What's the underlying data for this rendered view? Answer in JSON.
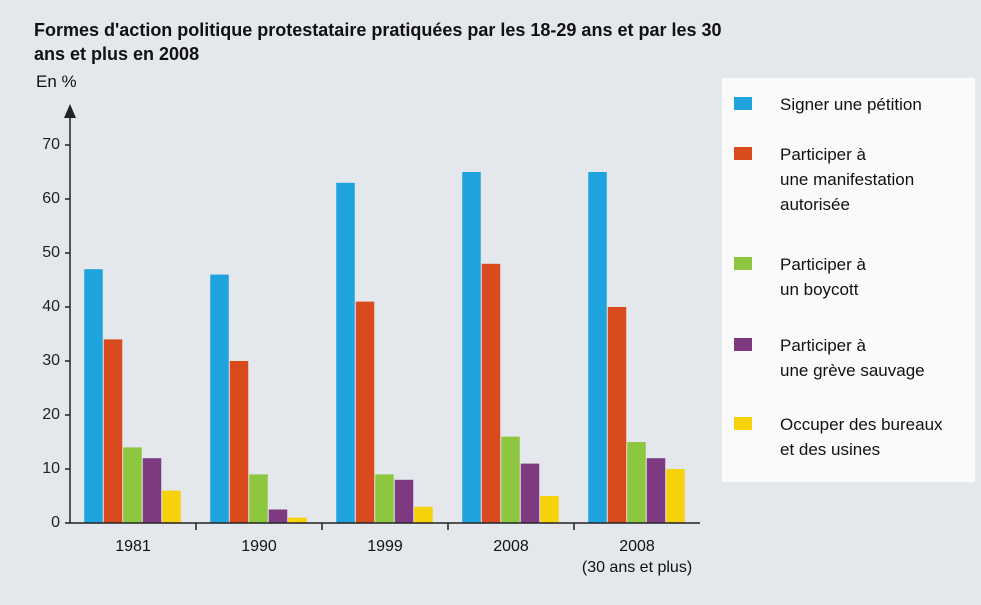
{
  "chart_data": {
    "type": "bar",
    "title": "Formes d'action politique protestataire pratiquées par les 18-29 ans et par les 30 ans et plus en 2008",
    "y_label": "En %",
    "categories": [
      "1981",
      "1990",
      "1999",
      "2008",
      "2008\n(30 ans et plus)"
    ],
    "series": [
      {
        "name": "Signer une pétition",
        "color": "#1fa3de",
        "values": [
          47,
          46,
          63,
          65,
          65
        ]
      },
      {
        "name": "Participer à\nune manifestation\nautorisée",
        "color": "#da4a1f",
        "values": [
          34,
          30,
          41,
          48,
          40
        ]
      },
      {
        "name": "Participer à\nun boycott",
        "color": "#8dc63f",
        "values": [
          14,
          9,
          9,
          16,
          15
        ]
      },
      {
        "name": "Participer à\nune grève sauvage",
        "color": "#7d3a80",
        "values": [
          12,
          2.5,
          8,
          11,
          12
        ]
      },
      {
        "name": "Occuper des bureaux\net des usines",
        "color": "#f6d20a",
        "values": [
          6,
          1,
          3,
          5,
          10
        ]
      }
    ],
    "ylim": [
      0,
      70
    ],
    "yticks": [
      0,
      10,
      20,
      30,
      40,
      50,
      60,
      70
    ],
    "legend": "right"
  }
}
